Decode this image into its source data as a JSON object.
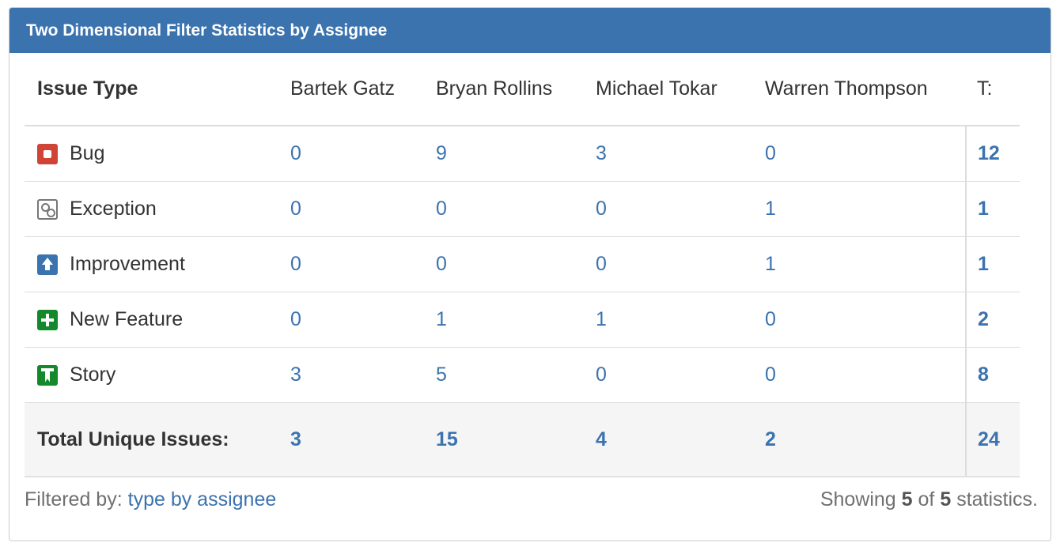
{
  "gadget": {
    "title": "Two Dimensional Filter Statistics by Assignee"
  },
  "table": {
    "type_header": "Issue Type",
    "assignees": [
      "Bartek Gatz",
      "Bryan Rollins",
      "Michael Tokar",
      "Warren Thompson"
    ],
    "total_header": "T:",
    "rows": [
      {
        "type": "Bug",
        "icon": "bug-icon",
        "values": [
          "0",
          "9",
          "3",
          "0"
        ],
        "total": "12"
      },
      {
        "type": "Exception",
        "icon": "exception-icon",
        "values": [
          "0",
          "0",
          "0",
          "1"
        ],
        "total": "1"
      },
      {
        "type": "Improvement",
        "icon": "improvement-icon",
        "values": [
          "0",
          "0",
          "0",
          "1"
        ],
        "total": "1"
      },
      {
        "type": "New Feature",
        "icon": "new-feature-icon",
        "values": [
          "0",
          "1",
          "1",
          "0"
        ],
        "total": "2"
      },
      {
        "type": "Story",
        "icon": "story-icon",
        "values": [
          "3",
          "5",
          "0",
          "0"
        ],
        "total": "8"
      }
    ],
    "totals_label": "Total Unique Issues:",
    "totals": [
      "3",
      "15",
      "4",
      "2"
    ],
    "grand_total": "24"
  },
  "footer": {
    "filtered_prefix": "Filtered by:",
    "filter_name": "type by assignee",
    "showing_prefix": "Showing",
    "showing_count": "5",
    "showing_of": "of",
    "showing_total": "5",
    "showing_suffix": "statistics."
  },
  "colors": {
    "header_bg": "#3b73af",
    "link": "#3b73af",
    "bug": "#d04437",
    "new_feature": "#14892c",
    "story": "#14892c"
  }
}
